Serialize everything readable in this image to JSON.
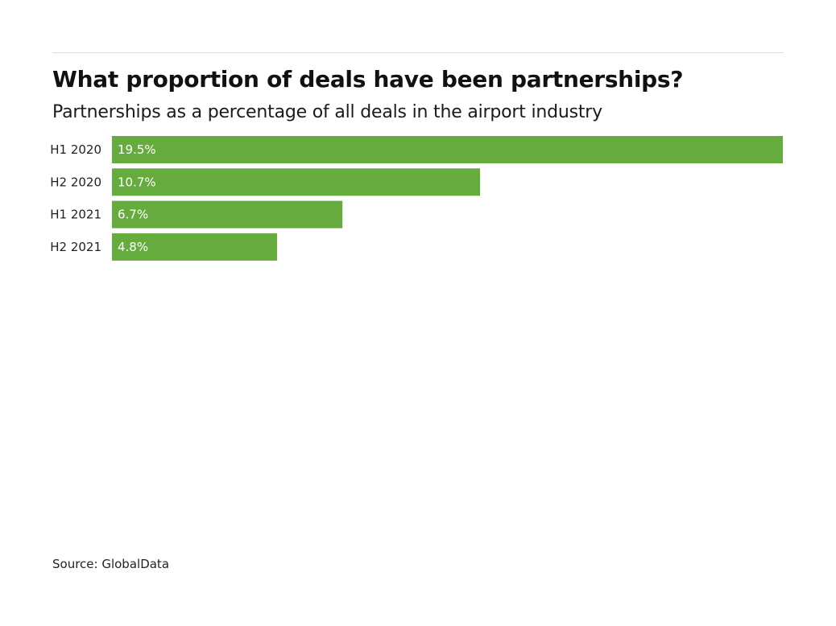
{
  "chart_data": {
    "type": "bar",
    "orientation": "horizontal",
    "title": "What proportion of deals have been partnerships?",
    "subtitle": "Partnerships as a percentage of all deals in the airport industry",
    "categories": [
      "H1 2020",
      "H2 2020",
      "H1 2021",
      "H2 2021"
    ],
    "values": [
      19.5,
      10.7,
      6.7,
      4.8
    ],
    "value_labels": [
      "19.5%",
      "10.7%",
      "6.7%",
      "4.8%"
    ],
    "xlabel": "",
    "ylabel": "",
    "xlim": [
      0,
      19.5
    ],
    "grid": false,
    "bar_color": "#66ab3e",
    "source": "Source: GlobalData"
  }
}
